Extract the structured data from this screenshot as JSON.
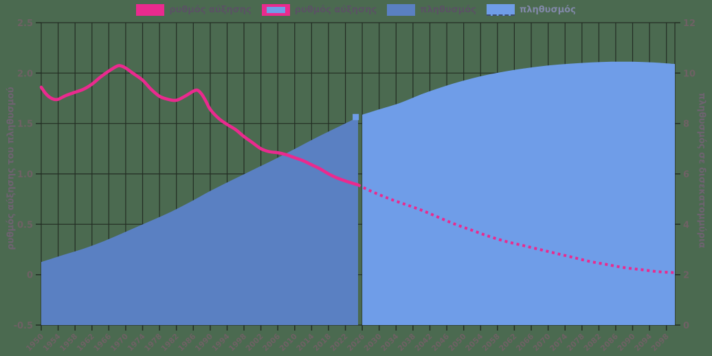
{
  "colors": {
    "background": "#4b6a50",
    "grid": "#232c23",
    "tick_text": "#6e6164",
    "axis_title_text": "#6e6370",
    "legend_text": "#5a5264",
    "legend_text_muted": "#8289a9",
    "pink": "#ea2a8e",
    "blue_dark": "#5a80c2",
    "blue_light": "#6f9de8"
  },
  "legend": {
    "items": [
      {
        "label": "ρυθμός αύξησης",
        "series": "growth-rate-historical",
        "swatch_fill": "#ea2a8e"
      },
      {
        "label": "ρυθμός αύξησης",
        "series": "growth-rate-projected",
        "swatch_fill": "#6f9de8",
        "swatch_border": "#ea2a8e"
      },
      {
        "label": "πληθυσμός",
        "series": "population-historical",
        "swatch_fill": "#5a80c2"
      },
      {
        "label": "πληθυσμός",
        "series": "population-projected",
        "swatch_fill": "#6f9de8",
        "swatch_dashed_underline": true,
        "label_muted": true
      }
    ]
  },
  "chart_data": {
    "type": "area",
    "x_axis": {
      "range": [
        1950,
        2100
      ],
      "tick_step": 4,
      "tick_years": [
        1950,
        1954,
        1958,
        1962,
        1966,
        1970,
        1974,
        1978,
        1982,
        1986,
        1990,
        1994,
        1998,
        2002,
        2006,
        2010,
        2014,
        2018,
        2022,
        2026,
        2030,
        2034,
        2038,
        2042,
        2046,
        2050,
        2054,
        2058,
        2062,
        2066,
        2070,
        2074,
        2078,
        2082,
        2086,
        2090,
        2094,
        2098
      ]
    },
    "y_left": {
      "title": "ρυθμός αύξησης του πληθυσμού",
      "range": [
        -0.5,
        2.5
      ],
      "tick_values": [
        2.5,
        2.0,
        1.5,
        1.0,
        0.5,
        0,
        -0.5
      ],
      "tick_labels": [
        "2.5",
        "2.0",
        "1.5",
        "1.0",
        "0.5",
        "0",
        "-0.5"
      ]
    },
    "y_right": {
      "title": "πληθυσμός σε δισεκατομμύρια",
      "range": [
        0,
        12
      ],
      "tick_values": [
        12,
        10,
        8,
        6,
        4,
        2,
        0
      ],
      "tick_labels": [
        "12",
        "10",
        "8",
        "6",
        "4",
        "2",
        "0"
      ]
    },
    "grid": true,
    "legend_position": "top",
    "series": [
      {
        "name": "πληθυσμός",
        "role": "population-historical",
        "axis": "right",
        "style": "area",
        "color": "#5a80c2",
        "points": [
          [
            1950,
            2.5
          ],
          [
            1955,
            2.77
          ],
          [
            1960,
            3.03
          ],
          [
            1965,
            3.34
          ],
          [
            1970,
            3.7
          ],
          [
            1975,
            4.07
          ],
          [
            1980,
            4.44
          ],
          [
            1985,
            4.86
          ],
          [
            1990,
            5.32
          ],
          [
            1995,
            5.74
          ],
          [
            2000,
            6.15
          ],
          [
            2005,
            6.56
          ],
          [
            2010,
            6.99
          ],
          [
            2015,
            7.43
          ],
          [
            2020,
            7.84
          ],
          [
            2025,
            8.25
          ]
        ]
      },
      {
        "name": "πληθυσμός",
        "role": "population-projected",
        "axis": "right",
        "style": "area",
        "color": "#6f9de8",
        "start_cap": true,
        "points": [
          [
            2026,
            8.35
          ],
          [
            2030,
            8.56
          ],
          [
            2035,
            8.82
          ],
          [
            2040,
            9.16
          ],
          [
            2045,
            9.45
          ],
          [
            2050,
            9.7
          ],
          [
            2055,
            9.91
          ],
          [
            2060,
            10.07
          ],
          [
            2065,
            10.2
          ],
          [
            2070,
            10.3
          ],
          [
            2075,
            10.37
          ],
          [
            2080,
            10.42
          ],
          [
            2085,
            10.45
          ],
          [
            2090,
            10.45
          ],
          [
            2095,
            10.42
          ],
          [
            2100,
            10.36
          ]
        ]
      },
      {
        "name": "ρυθμός αύξησης",
        "role": "growth-rate-historical",
        "axis": "left",
        "style": "line-solid",
        "color": "#ea2a8e",
        "points": [
          [
            1950,
            1.86
          ],
          [
            1951,
            1.8
          ],
          [
            1952,
            1.76
          ],
          [
            1953,
            1.74
          ],
          [
            1954,
            1.74
          ],
          [
            1955,
            1.76
          ],
          [
            1956,
            1.78
          ],
          [
            1958,
            1.81
          ],
          [
            1960,
            1.84
          ],
          [
            1962,
            1.89
          ],
          [
            1964,
            1.96
          ],
          [
            1966,
            2.02
          ],
          [
            1968,
            2.07
          ],
          [
            1969,
            2.07
          ],
          [
            1970,
            2.05
          ],
          [
            1972,
            1.99
          ],
          [
            1974,
            1.93
          ],
          [
            1976,
            1.84
          ],
          [
            1978,
            1.77
          ],
          [
            1980,
            1.74
          ],
          [
            1982,
            1.73
          ],
          [
            1984,
            1.77
          ],
          [
            1986,
            1.82
          ],
          [
            1987,
            1.83
          ],
          [
            1988,
            1.79
          ],
          [
            1989,
            1.72
          ],
          [
            1990,
            1.64
          ],
          [
            1992,
            1.55
          ],
          [
            1994,
            1.49
          ],
          [
            1996,
            1.44
          ],
          [
            1998,
            1.37
          ],
          [
            2000,
            1.31
          ],
          [
            2002,
            1.25
          ],
          [
            2004,
            1.22
          ],
          [
            2006,
            1.21
          ],
          [
            2008,
            1.19
          ],
          [
            2010,
            1.16
          ],
          [
            2012,
            1.13
          ],
          [
            2014,
            1.09
          ],
          [
            2016,
            1.05
          ],
          [
            2018,
            1.0
          ],
          [
            2020,
            0.96
          ],
          [
            2022,
            0.93
          ],
          [
            2025,
            0.89
          ]
        ]
      },
      {
        "name": "ρυθμός αύξησης",
        "role": "growth-rate-projected",
        "axis": "left",
        "style": "line-dotted",
        "color": "#ea2a8e",
        "points": [
          [
            2025,
            0.89
          ],
          [
            2028,
            0.83
          ],
          [
            2032,
            0.76
          ],
          [
            2036,
            0.7
          ],
          [
            2040,
            0.64
          ],
          [
            2044,
            0.57
          ],
          [
            2048,
            0.5
          ],
          [
            2052,
            0.44
          ],
          [
            2056,
            0.38
          ],
          [
            2060,
            0.33
          ],
          [
            2064,
            0.29
          ],
          [
            2068,
            0.25
          ],
          [
            2072,
            0.21
          ],
          [
            2076,
            0.17
          ],
          [
            2080,
            0.13
          ],
          [
            2084,
            0.1
          ],
          [
            2088,
            0.07
          ],
          [
            2092,
            0.05
          ],
          [
            2096,
            0.03
          ],
          [
            2100,
            0.02
          ]
        ]
      }
    ]
  }
}
